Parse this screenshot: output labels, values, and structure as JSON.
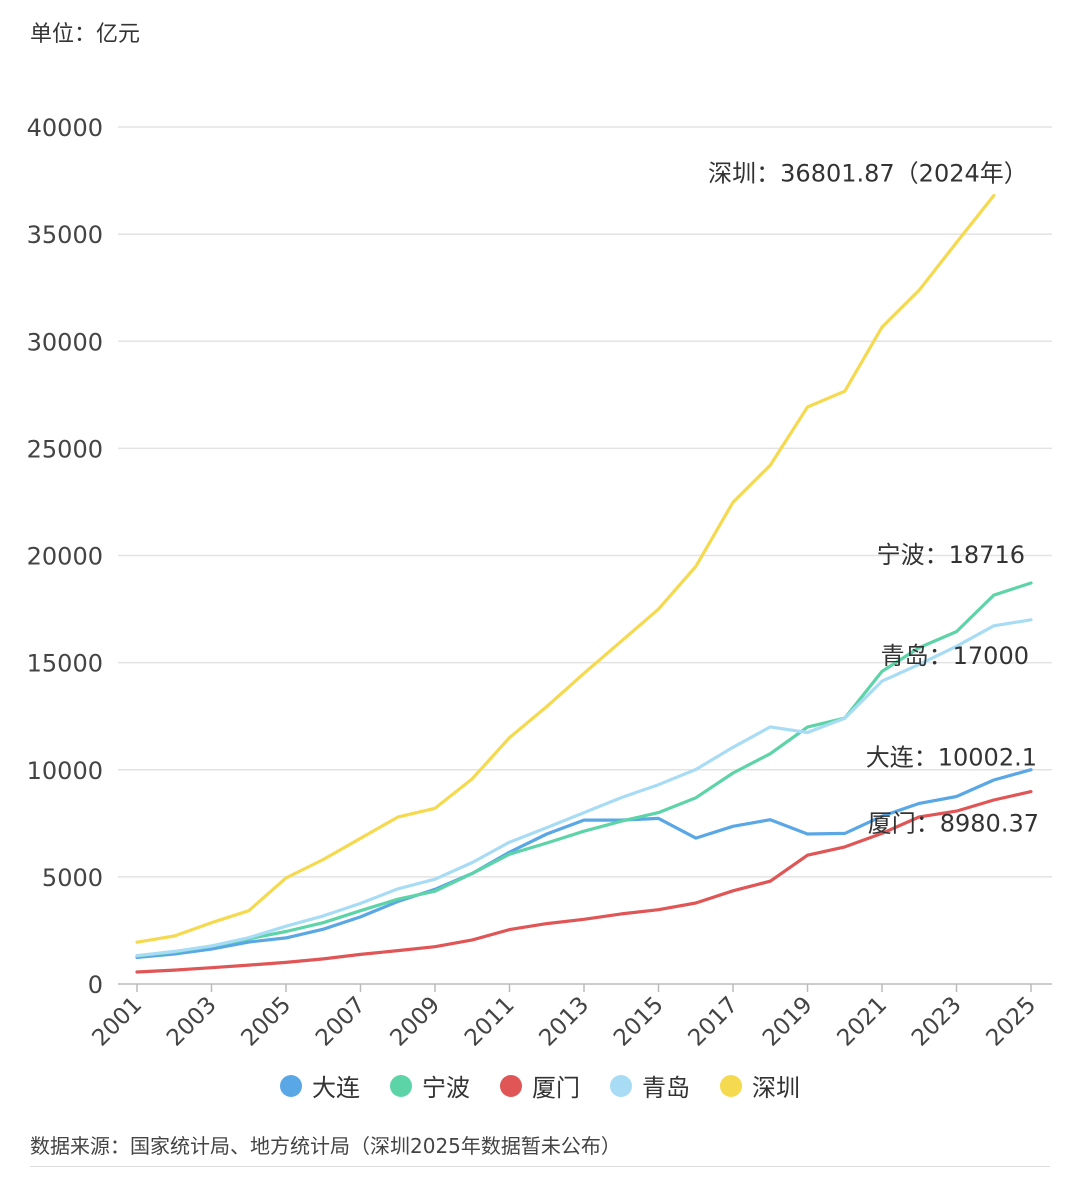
{
  "unit_label": "单位：亿元",
  "source_note": "数据来源：国家统计局、地方统计局（深圳2025年数据暂未公布）",
  "chart_data": {
    "type": "line",
    "title": "",
    "xlabel": "",
    "ylabel": "单位：亿元",
    "ylim": [
      0,
      40000
    ],
    "y_ticks": [
      0,
      5000,
      10000,
      15000,
      20000,
      25000,
      30000,
      35000,
      40000
    ],
    "x_tick_labels": [
      "2001",
      "2003",
      "2005",
      "2007",
      "2009",
      "2011",
      "2013",
      "2015",
      "2017",
      "2019",
      "2021",
      "2023",
      "2025"
    ],
    "x": [
      2001,
      2002,
      2003,
      2004,
      2005,
      2006,
      2007,
      2008,
      2009,
      2010,
      2011,
      2012,
      2013,
      2014,
      2015,
      2016,
      2017,
      2018,
      2019,
      2020,
      2021,
      2022,
      2023,
      2024,
      2025
    ],
    "legend_position": "bottom",
    "series": [
      {
        "name": "大连",
        "color": "#5aa7e6",
        "values": [
          1240,
          1400,
          1630,
          1960,
          2150,
          2560,
          3130,
          3850,
          4420,
          5160,
          6150,
          7000,
          7650,
          7650,
          7730,
          6810,
          7360,
          7670,
          7000,
          7030,
          7830,
          8430,
          8750,
          9520,
          10002.1
        ]
      },
      {
        "name": "宁波",
        "color": "#5dd4a7",
        "values": [
          1310,
          1500,
          1770,
          2110,
          2450,
          2860,
          3420,
          3960,
          4330,
          5160,
          6060,
          6580,
          7130,
          7600,
          8000,
          8690,
          9850,
          10750,
          11990,
          12410,
          14590,
          15700,
          16450,
          18150,
          18716
        ]
      },
      {
        "name": "厦门",
        "color": "#e05555",
        "values": [
          560,
          650,
          760,
          880,
          1010,
          1170,
          1380,
          1560,
          1740,
          2060,
          2540,
          2820,
          3020,
          3270,
          3470,
          3780,
          4350,
          4800,
          6010,
          6400,
          7030,
          7800,
          8070,
          8590,
          8980.37
        ]
      },
      {
        "name": "青岛",
        "color": "#a8dcf5",
        "values": [
          1320,
          1520,
          1780,
          2160,
          2700,
          3180,
          3760,
          4440,
          4890,
          5670,
          6620,
          7300,
          8000,
          8700,
          9300,
          10010,
          11050,
          12000,
          11740,
          12400,
          14140,
          14920,
          15760,
          16720,
          17000
        ]
      },
      {
        "name": "深圳",
        "color": "#f5d94e",
        "values": [
          1950,
          2240,
          2860,
          3420,
          4950,
          5810,
          6800,
          7790,
          8200,
          9580,
          11500,
          12950,
          14500,
          16000,
          17500,
          19490,
          22490,
          24220,
          26930,
          27670,
          30660,
          32390,
          34610,
          36801.87,
          null
        ]
      }
    ],
    "annotations": [
      {
        "series": "深圳",
        "text": "深圳：36801.87（2024年）"
      },
      {
        "series": "宁波",
        "text": "宁波：18716"
      },
      {
        "series": "青岛",
        "text": "青岛：17000"
      },
      {
        "series": "大连",
        "text": "大连：10002.1"
      },
      {
        "series": "厦门",
        "text": "厦门：8980.37"
      }
    ]
  }
}
